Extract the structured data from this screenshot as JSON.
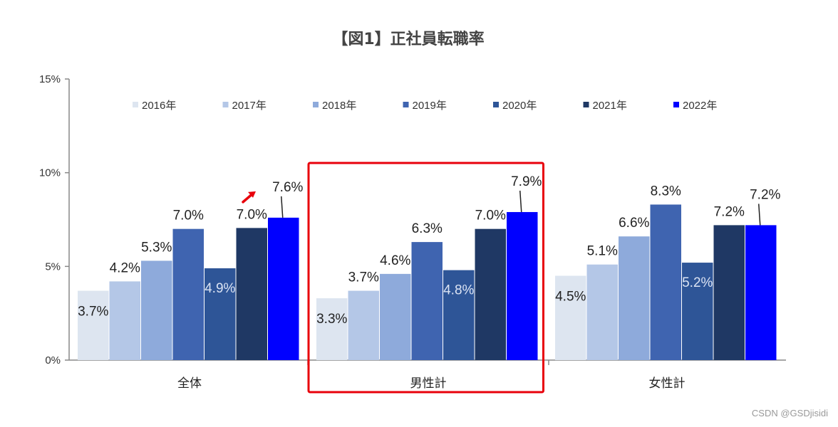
{
  "chart_data": {
    "type": "bar",
    "title": "【図1】正社員転職率",
    "categories": [
      "全体",
      "男性計",
      "女性計"
    ],
    "yticks": [
      "0%",
      "5%",
      "10%",
      "15%"
    ],
    "ylim": [
      0,
      15
    ],
    "grid": false,
    "legend_position": "top",
    "series": [
      {
        "name": "2016年",
        "color": "#dde5f0",
        "values": [
          3.7,
          3.3,
          4.5
        ],
        "labels": [
          "3.7%",
          "3.3%",
          "4.5%"
        ]
      },
      {
        "name": "2017年",
        "color": "#b4c7e7",
        "values": [
          4.2,
          3.7,
          5.1
        ],
        "labels": [
          "4.2%",
          "3.7%",
          "5.1%"
        ]
      },
      {
        "name": "2018年",
        "color": "#8eaadb",
        "values": [
          5.3,
          4.6,
          6.6
        ],
        "labels": [
          "5.3%",
          "4.6%",
          "6.6%"
        ]
      },
      {
        "name": "2019年",
        "color": "#3f64b0",
        "values": [
          7.0,
          6.3,
          8.3
        ],
        "labels": [
          "7.0%",
          "6.3%",
          "8.3%"
        ]
      },
      {
        "name": "2020年",
        "color": "#2e5597",
        "values": [
          4.9,
          4.8,
          5.2
        ],
        "labels": [
          "4.9%",
          "4.8%",
          "5.2%"
        ]
      },
      {
        "name": "2021年",
        "color": "#1f3864",
        "values": [
          7.05,
          7.0,
          7.2
        ],
        "labels": [
          "7.0%",
          "7.0%",
          "7.2%"
        ]
      },
      {
        "name": "2022年",
        "color": "#0000ff",
        "values": [
          7.6,
          7.9,
          7.2
        ],
        "labels": [
          "7.6%",
          "7.9%",
          "7.2%"
        ]
      }
    ],
    "highlight_category": "男性計",
    "highlight_color": "#e8000b",
    "arrow_color": "#e8000b"
  },
  "watermark": "CSDN @GSDjisidi"
}
